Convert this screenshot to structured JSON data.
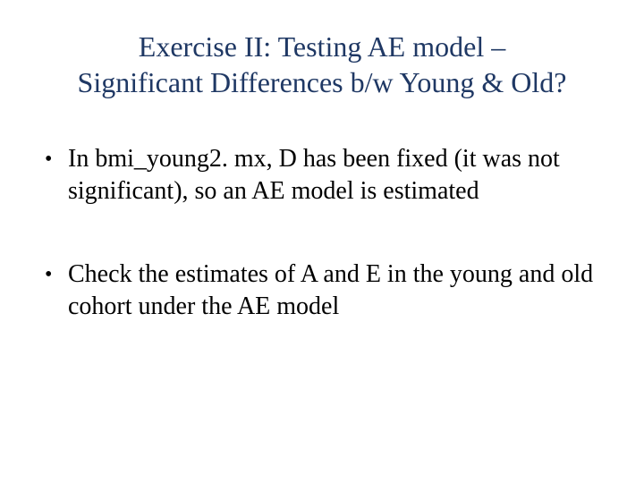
{
  "slide": {
    "title_line1": "Exercise II: Testing AE model –",
    "title_line2": "Significant Differences b/w Young & Old?",
    "title_color": "#1f3864",
    "body_color": "#000000",
    "background_color": "#ffffff",
    "title_fontsize": 32,
    "body_fontsize": 28,
    "bullets": [
      "In bmi_young2. mx, D has been fixed (it was not significant), so an AE model is estimated",
      "Check the estimates of A and E in the young and old cohort under the AE model"
    ]
  }
}
